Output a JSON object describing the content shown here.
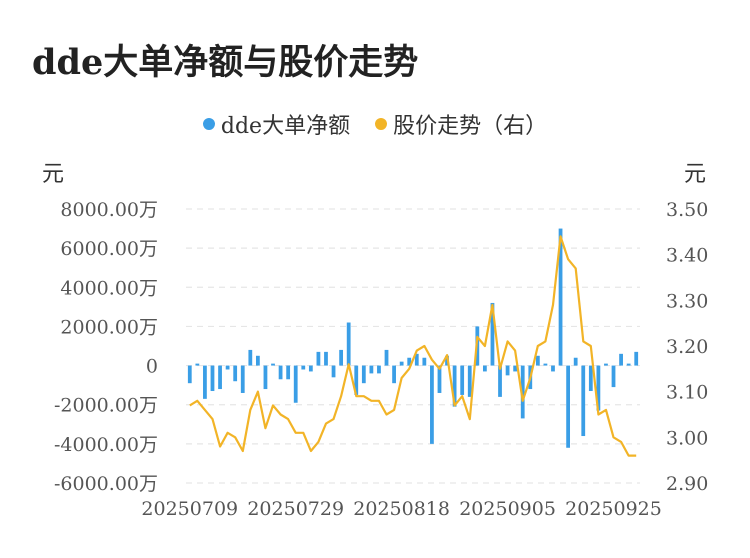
{
  "title": "dde大单净额与股价走势",
  "colors": {
    "bar": "#3a9ee6",
    "line": "#f2b427",
    "grid": "#e6e6e6"
  },
  "chart_data": {
    "type": "bar+line",
    "title": "dde大单净额与股价走势",
    "legend": {
      "placement": "top-center",
      "entries": [
        "dde大单净额",
        "股价走势（右）"
      ]
    },
    "y_left": {
      "unit": "元",
      "min": -6000,
      "max": 8000,
      "ticks": [
        "8000.00万",
        "6000.00万",
        "4000.00万",
        "2000.00万",
        "0",
        "-2000.00万",
        "-4000.00万",
        "-6000.00万"
      ]
    },
    "y_right": {
      "unit": "元",
      "min": 2.9,
      "max": 3.5,
      "ticks": [
        "3.50",
        "3.40",
        "3.30",
        "3.20",
        "3.10",
        "3.00",
        "2.90"
      ]
    },
    "x_tick_labels": [
      "20250709",
      "20250729",
      "20250818",
      "20250905",
      "20250925"
    ],
    "x_tick_indices": [
      0,
      14,
      28,
      42,
      56
    ],
    "grid": "horizontal-dashed",
    "series": [
      {
        "name": "dde大单净额",
        "type": "bar",
        "axis": "left",
        "values": [
          -900,
          100,
          -1700,
          -1300,
          -1200,
          -200,
          -800,
          -1400,
          800,
          500,
          -1200,
          100,
          -700,
          -700,
          -1900,
          -200,
          -300,
          700,
          700,
          -600,
          800,
          2200,
          -1500,
          -900,
          -400,
          -400,
          800,
          -900,
          200,
          400,
          600,
          400,
          -4000,
          -1400,
          500,
          -2100,
          -1500,
          -1600,
          2000,
          -300,
          3200,
          -1600,
          -500,
          -300,
          -2700,
          -1200,
          500,
          100,
          -300,
          7000,
          -4200,
          400,
          -3600,
          -1300,
          -2300,
          100,
          -1100,
          600,
          100,
          700
        ],
        "unit": "万元"
      },
      {
        "name": "股价走势（右）",
        "type": "line",
        "axis": "right",
        "values": [
          3.07,
          3.08,
          3.06,
          3.04,
          2.98,
          3.01,
          3.0,
          2.97,
          3.06,
          3.1,
          3.02,
          3.07,
          3.05,
          3.04,
          3.01,
          3.01,
          2.97,
          2.99,
          3.03,
          3.04,
          3.09,
          3.16,
          3.09,
          3.09,
          3.08,
          3.08,
          3.05,
          3.06,
          3.13,
          3.15,
          3.19,
          3.2,
          3.17,
          3.15,
          3.18,
          3.07,
          3.09,
          3.04,
          3.22,
          3.2,
          3.29,
          3.15,
          3.21,
          3.19,
          3.08,
          3.13,
          3.2,
          3.21,
          3.29,
          3.44,
          3.39,
          3.37,
          3.21,
          3.2,
          3.05,
          3.06,
          3.0,
          2.99,
          2.96,
          2.96
        ]
      }
    ]
  }
}
